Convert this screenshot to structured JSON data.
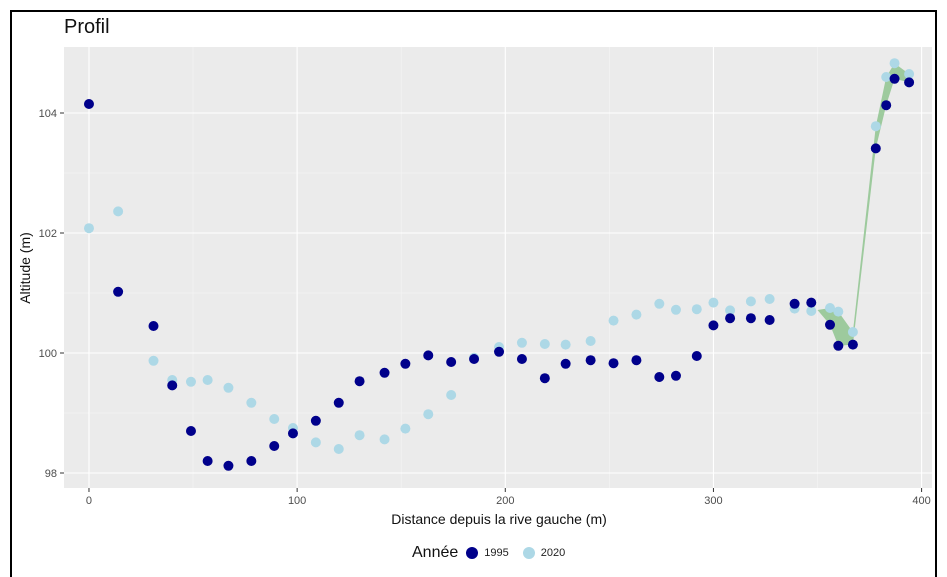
{
  "chart_data": {
    "type": "scatter",
    "title": "Profil",
    "xlabel": "Distance depuis la rive gauche (m)",
    "ylabel": "Altitude (m)",
    "xlim": [
      -12,
      405
    ],
    "ylim": [
      97.75,
      105.1
    ],
    "xticks": [
      0,
      100,
      200,
      300,
      400
    ],
    "yticks": [
      98,
      100,
      102,
      104
    ],
    "grid": true,
    "legend": {
      "title": "Année",
      "placement": "bottom"
    },
    "series": [
      {
        "name": "1995",
        "color": "#00008b",
        "points": [
          [
            0,
            104.15
          ],
          [
            14,
            101.02
          ],
          [
            31,
            100.45
          ],
          [
            40,
            99.46
          ],
          [
            49,
            98.7
          ],
          [
            57,
            98.2
          ],
          [
            67,
            98.12
          ],
          [
            78,
            98.2
          ],
          [
            89,
            98.45
          ],
          [
            98,
            98.66
          ],
          [
            109,
            98.87
          ],
          [
            120,
            99.17
          ],
          [
            130,
            99.53
          ],
          [
            142,
            99.67
          ],
          [
            152,
            99.82
          ],
          [
            163,
            99.96
          ],
          [
            174,
            99.85
          ],
          [
            185,
            99.9
          ],
          [
            197,
            100.02
          ],
          [
            208,
            99.9
          ],
          [
            219,
            99.58
          ],
          [
            229,
            99.82
          ],
          [
            241,
            99.88
          ],
          [
            252,
            99.83
          ],
          [
            263,
            99.88
          ],
          [
            274,
            99.6
          ],
          [
            282,
            99.62
          ],
          [
            292,
            99.95
          ],
          [
            300,
            100.46
          ],
          [
            308,
            100.58
          ],
          [
            318,
            100.58
          ],
          [
            327,
            100.55
          ],
          [
            339,
            100.82
          ],
          [
            347,
            100.84
          ],
          [
            356,
            100.47
          ],
          [
            360,
            100.12
          ],
          [
            367,
            100.14
          ],
          [
            378,
            103.41
          ],
          [
            383,
            104.13
          ],
          [
            387,
            104.57
          ],
          [
            394,
            104.51
          ]
        ]
      },
      {
        "name": "2020",
        "color": "#add8e6",
        "points": [
          [
            0,
            102.08
          ],
          [
            14,
            102.36
          ],
          [
            31,
            99.87
          ],
          [
            40,
            99.55
          ],
          [
            49,
            99.52
          ],
          [
            57,
            99.55
          ],
          [
            67,
            99.42
          ],
          [
            78,
            99.17
          ],
          [
            89,
            98.9
          ],
          [
            98,
            98.75
          ],
          [
            109,
            98.51
          ],
          [
            120,
            98.4
          ],
          [
            130,
            98.63
          ],
          [
            142,
            98.56
          ],
          [
            152,
            98.74
          ],
          [
            163,
            98.98
          ],
          [
            174,
            99.3
          ],
          [
            185,
            99.92
          ],
          [
            197,
            100.1
          ],
          [
            208,
            100.17
          ],
          [
            219,
            100.15
          ],
          [
            229,
            100.14
          ],
          [
            241,
            100.2
          ],
          [
            252,
            100.54
          ],
          [
            263,
            100.64
          ],
          [
            274,
            100.82
          ],
          [
            282,
            100.72
          ],
          [
            292,
            100.73
          ],
          [
            300,
            100.84
          ],
          [
            308,
            100.71
          ],
          [
            318,
            100.86
          ],
          [
            327,
            100.9
          ],
          [
            339,
            100.74
          ],
          [
            347,
            100.7
          ],
          [
            356,
            100.75
          ],
          [
            360,
            100.69
          ],
          [
            367,
            100.35
          ],
          [
            378,
            103.78
          ],
          [
            383,
            104.6
          ],
          [
            387,
            104.83
          ],
          [
            394,
            104.65
          ]
        ]
      }
    ],
    "fill_colors": {
      "gain": "#8fc48f",
      "loss": "#c98a8a"
    }
  }
}
